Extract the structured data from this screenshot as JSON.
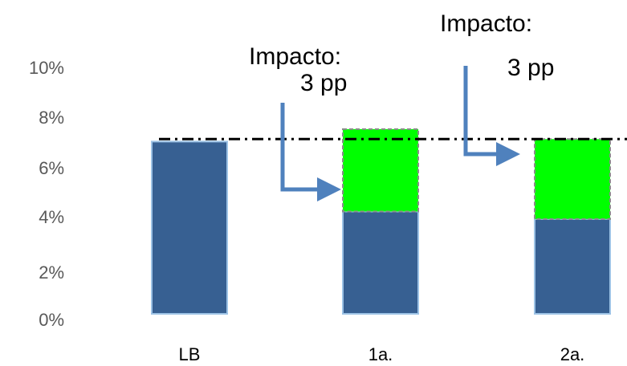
{
  "chart_data": {
    "type": "bar",
    "stacked": true,
    "categories": [
      "LB",
      "1a.",
      "2a."
    ],
    "series": [
      {
        "values": [
          6.9,
          4.1,
          3.8
        ],
        "color": "#376092"
      },
      {
        "values": [
          0,
          3.3,
          3.2
        ],
        "color": "#00ff00"
      }
    ],
    "ylim": [
      0,
      10
    ],
    "yticks": [
      "0%",
      "2%",
      "4%",
      "6%",
      "8%",
      "10%"
    ],
    "reference_line": {
      "y": 7.0,
      "style": "dash-dot"
    },
    "annotations": [
      {
        "target": "1a.",
        "lines": [
          "Impacto:",
          "3 pp"
        ]
      },
      {
        "target": "2a.",
        "lines": [
          "Impacto:",
          "3 pp"
        ]
      }
    ],
    "arrow_color": "#4f81bd",
    "grid": false,
    "legend": "none"
  }
}
